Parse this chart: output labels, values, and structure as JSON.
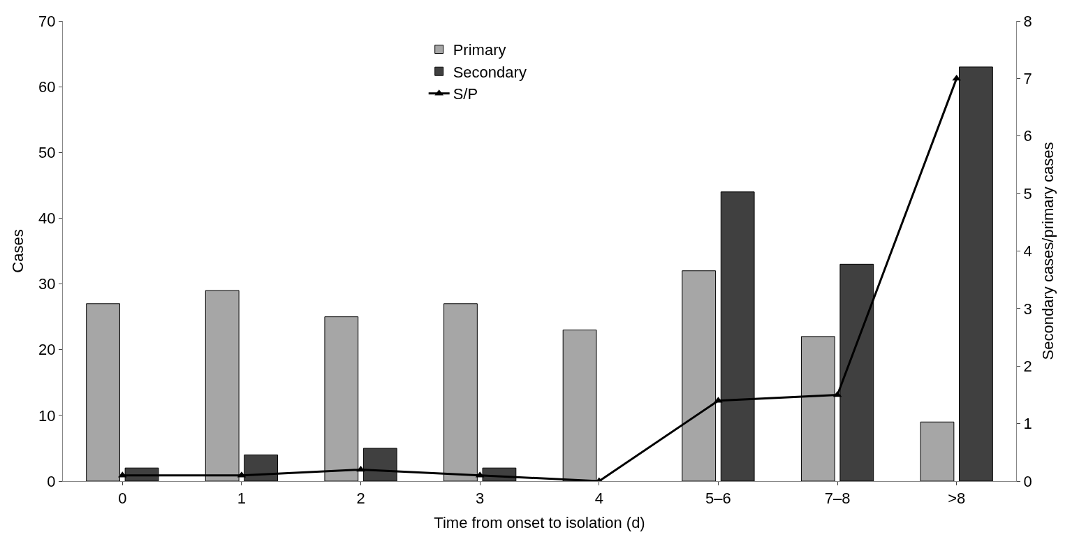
{
  "chart_data": {
    "type": "bar",
    "xlabel": "Time from onset to isolation (d)",
    "ylabel": "Cases",
    "y2label": "Secondary cases/primary cases",
    "categories": [
      "0",
      "1",
      "2",
      "3",
      "4",
      "5–6",
      "7–8",
      ">8"
    ],
    "series": [
      {
        "name": "Primary",
        "color": "#a6a6a6",
        "values": [
          27,
          29,
          25,
          27,
          23,
          32,
          22,
          9
        ]
      },
      {
        "name": "Secondary",
        "color": "#404040",
        "values": [
          2,
          4,
          5,
          2,
          null,
          44,
          33,
          63
        ]
      },
      {
        "name": "S/P",
        "type": "line",
        "axis": "y2",
        "color": "#000000",
        "marker": "triangle",
        "line_style": "solid",
        "values": [
          0.1,
          0.1,
          0.2,
          0.1,
          0,
          1.4,
          1.5,
          7
        ]
      }
    ],
    "ylim": [
      0,
      70
    ],
    "yticks": [
      0,
      10,
      20,
      30,
      40,
      50,
      60,
      70
    ],
    "y2lim": [
      0,
      8
    ],
    "y2ticks": [
      0,
      1,
      2,
      3,
      4,
      5,
      6,
      7,
      8
    ],
    "legend": "top"
  }
}
